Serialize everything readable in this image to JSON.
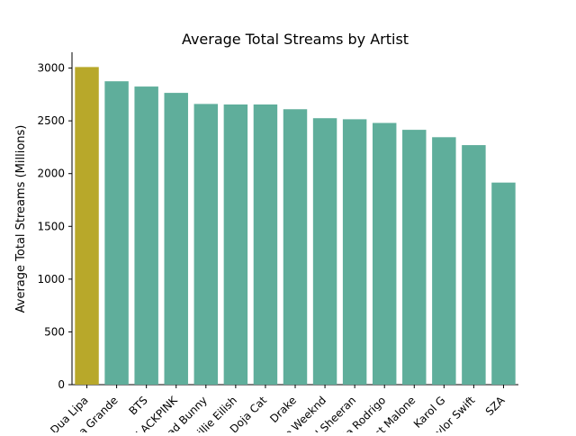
{
  "chart_data": {
    "type": "bar",
    "title": "Average Total Streams by Artist",
    "xlabel": "",
    "ylabel": "Average Total Streams (Millions)",
    "ylim": [
      0,
      3150
    ],
    "yticks": [
      0,
      500,
      1000,
      1500,
      2000,
      2500,
      3000
    ],
    "categories": [
      "Dua Lipa",
      "Ariana Grande",
      "BTS",
      "BLACKPINK",
      "Bad Bunny",
      "Billie Eilish",
      "Doja Cat",
      "Drake",
      "The Weeknd",
      "Ed Sheeran",
      "Olivia Rodrigo",
      "Post Malone",
      "Karol G",
      "Taylor Swift",
      "SZA"
    ],
    "values": [
      3010,
      2875,
      2825,
      2765,
      2660,
      2655,
      2655,
      2610,
      2525,
      2515,
      2480,
      2415,
      2345,
      2270,
      1915
    ],
    "bar_colors": [
      "#b8a82a",
      "#5fae9b",
      "#5fae9b",
      "#5fae9b",
      "#5fae9b",
      "#5fae9b",
      "#5fae9b",
      "#5fae9b",
      "#5fae9b",
      "#5fae9b",
      "#5fae9b",
      "#5fae9b",
      "#5fae9b",
      "#5fae9b",
      "#5fae9b"
    ],
    "highlight_color": "#b8a82a",
    "default_color": "#5fae9b",
    "grid": false,
    "legend": "none"
  }
}
